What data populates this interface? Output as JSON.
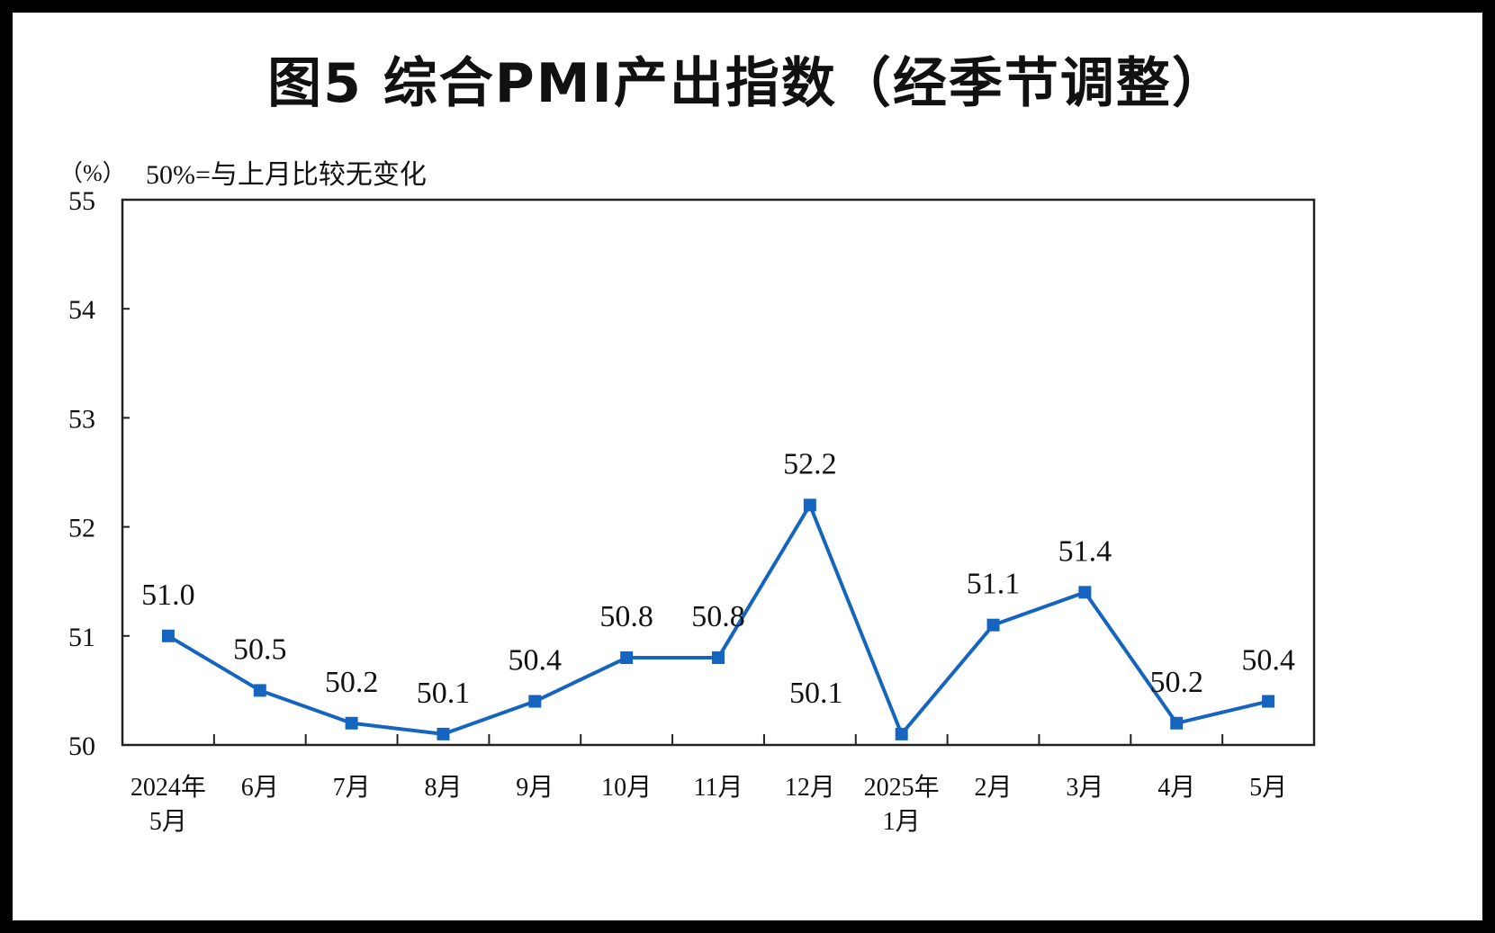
{
  "chart_data": {
    "type": "line",
    "title": "图5  综合PMI产出指数（经季节调整）",
    "unit": "（%）",
    "note": "50%=与上月比较无变化",
    "ylim": [
      50,
      55
    ],
    "yticks": [
      "50",
      "51",
      "52",
      "53",
      "54",
      "55"
    ],
    "categories": [
      [
        "2024年",
        "5月"
      ],
      [
        "6月"
      ],
      [
        "7月"
      ],
      [
        "8月"
      ],
      [
        "9月"
      ],
      [
        "10月"
      ],
      [
        "11月"
      ],
      [
        "12月"
      ],
      [
        "2025年",
        "1月"
      ],
      [
        "2月"
      ],
      [
        "3月"
      ],
      [
        "4月"
      ],
      [
        "5月"
      ]
    ],
    "series": [
      {
        "color": "#1565C0",
        "values": [
          51.0,
          50.5,
          50.2,
          50.1,
          50.4,
          50.8,
          50.8,
          52.2,
          50.1,
          51.1,
          51.4,
          50.2,
          50.4
        ],
        "labels": [
          "51.0",
          "50.5",
          "50.2",
          "50.1",
          "50.4",
          "50.8",
          "50.8",
          "52.2",
          "50.1",
          "51.1",
          "51.4",
          "50.2",
          "50.4"
        ]
      }
    ],
    "grid": false,
    "legend": "none"
  }
}
